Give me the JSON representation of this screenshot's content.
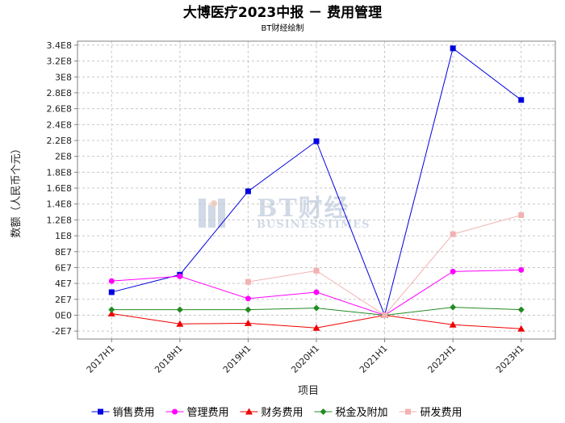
{
  "colors": {
    "sales": "#0000e0",
    "admin": "#ff00ff",
    "finance": "#ee0000",
    "tax": "#228b22",
    "rnd": "#f2b2b2",
    "grid": "#c8c8c8",
    "frame": "#808080",
    "watermark": "#c9d3e2"
  },
  "watermark": {
    "main": "BT财经",
    "sub": "BUSINESSTIMES"
  },
  "chart_data": {
    "type": "line",
    "title": "大博医疗2023中报 － 费用管理",
    "subtitle": "BT财经绘制",
    "xlabel": "项目",
    "ylabel": "数额（人民币个元）",
    "categories": [
      "2017H1",
      "2018H1",
      "2019H1",
      "2020H1",
      "2021H1",
      "2022H1",
      "2023H1"
    ],
    "ylim": [
      -30000000,
      345000000
    ],
    "yticks": [
      -20000000,
      0,
      20000000,
      40000000,
      60000000,
      80000000,
      100000000,
      120000000,
      140000000,
      160000000,
      180000000,
      200000000,
      220000000,
      240000000,
      260000000,
      280000000,
      300000000,
      320000000,
      340000000
    ],
    "ytick_labels": [
      "-2E7",
      "0E0",
      "2E7",
      "4E7",
      "6E7",
      "8E7",
      "1E8",
      "1.2E8",
      "1.4E8",
      "1.6E8",
      "1.8E8",
      "2E8",
      "2.2E8",
      "2.4E8",
      "2.6E8",
      "2.8E8",
      "3E8",
      "3.2E8",
      "3.4E8"
    ],
    "grid": true,
    "legend_position": "bottom",
    "series": [
      {
        "key": "sales",
        "name": "销售费用",
        "marker": "square",
        "values": [
          29000000,
          51000000,
          156000000,
          219000000,
          0,
          336000000,
          271000000
        ]
      },
      {
        "key": "admin",
        "name": "管理费用",
        "marker": "circle",
        "values": [
          43000000,
          49000000,
          21000000,
          29000000,
          0,
          55000000,
          57000000
        ]
      },
      {
        "key": "finance",
        "name": "财务费用",
        "marker": "triangle",
        "values": [
          2000000,
          -11000000,
          -10000000,
          -16000000,
          0,
          -12000000,
          -17000000
        ]
      },
      {
        "key": "tax",
        "name": "税金及附加",
        "marker": "diamond",
        "values": [
          7000000,
          7000000,
          7000000,
          9000000,
          0,
          10000000,
          7000000
        ]
      },
      {
        "key": "rnd",
        "name": "研发费用",
        "marker": "square",
        "values": [
          null,
          null,
          42000000,
          56000000,
          0,
          102000000,
          126000000
        ]
      }
    ]
  }
}
